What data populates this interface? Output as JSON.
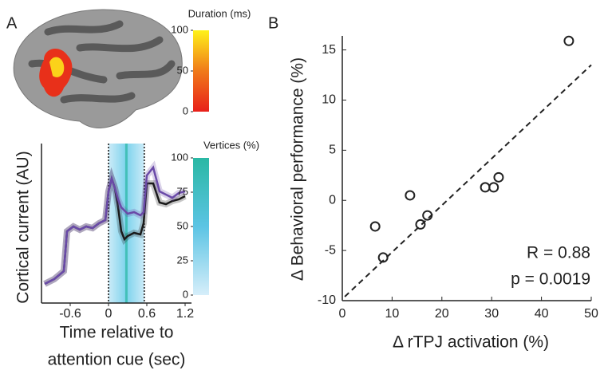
{
  "panels": [
    "A",
    "B"
  ],
  "chart_data": [
    {
      "type": "colorbar",
      "title": "Duration (ms)",
      "ylim": [
        0,
        100
      ],
      "yticks": [
        0,
        50,
        100
      ],
      "colors": [
        "#e8201a",
        "#f07a1a",
        "#fff21a"
      ]
    },
    {
      "type": "line",
      "ylabel": "Cortical current (AU)",
      "xlabel": [
        "Time relative to",
        "attention cue (sec)"
      ],
      "xlim": [
        -1.05,
        1.3
      ],
      "xticks": [
        -0.6,
        0,
        0.6,
        1.2
      ],
      "ylim": [
        0,
        10
      ],
      "shade_x": [
        0,
        0.56
      ],
      "x": [
        -1.0,
        -0.85,
        -0.7,
        -0.65,
        -0.55,
        -0.45,
        -0.35,
        -0.25,
        -0.15,
        -0.05,
        0.0,
        0.05,
        0.1,
        0.15,
        0.2,
        0.25,
        0.3,
        0.4,
        0.5,
        0.55,
        0.6,
        0.7,
        0.8,
        0.9,
        1.0,
        1.1,
        1.2
      ],
      "series": [
        {
          "color": "#1a1a1a",
          "values": [
            1.2,
            1.5,
            2.0,
            4.5,
            4.8,
            4.6,
            4.8,
            4.7,
            5.0,
            5.2,
            7.0,
            7.8,
            7.2,
            6.0,
            4.5,
            4.0,
            4.2,
            4.4,
            4.3,
            5.0,
            7.5,
            7.5,
            6.3,
            6.2,
            6.4,
            6.5,
            6.7
          ]
        },
        {
          "color": "#6a4aa8",
          "values": [
            1.2,
            1.5,
            2.0,
            4.5,
            4.8,
            4.6,
            4.8,
            4.7,
            5.0,
            5.2,
            7.0,
            7.8,
            7.2,
            6.5,
            6.0,
            5.8,
            5.6,
            5.7,
            5.5,
            5.7,
            8.0,
            8.5,
            7.0,
            6.8,
            6.6,
            6.9,
            7.0
          ]
        }
      ]
    },
    {
      "type": "colorbar",
      "title": "Vertices (%)",
      "ylim": [
        0,
        100
      ],
      "yticks": [
        0,
        25,
        50,
        75,
        100
      ],
      "colors": [
        "#d6eefa",
        "#5cc4e4",
        "#2ab8a4"
      ]
    },
    {
      "type": "scatter",
      "xlabel": "Δ rTPJ activation (%)",
      "ylabel": "Δ Behavioral performance (%)",
      "xlim": [
        0,
        50
      ],
      "xticks": [
        0,
        10,
        20,
        30,
        40,
        50
      ],
      "ylim": [
        -10,
        16.4
      ],
      "yticks": [
        -10,
        -5,
        0,
        5,
        10,
        15
      ],
      "x": [
        6.6,
        8.2,
        13.6,
        15.7,
        17.1,
        28.7,
        30.4,
        31.4,
        45.5
      ],
      "values": [
        -2.6,
        -5.7,
        0.5,
        -2.4,
        -1.5,
        1.3,
        1.3,
        2.3,
        15.9
      ],
      "trend_x": [
        0.5,
        50
      ],
      "trend_y": [
        -9.6,
        13.5
      ],
      "annotations": [
        "R = 0.88",
        "p = 0.0019"
      ]
    }
  ]
}
